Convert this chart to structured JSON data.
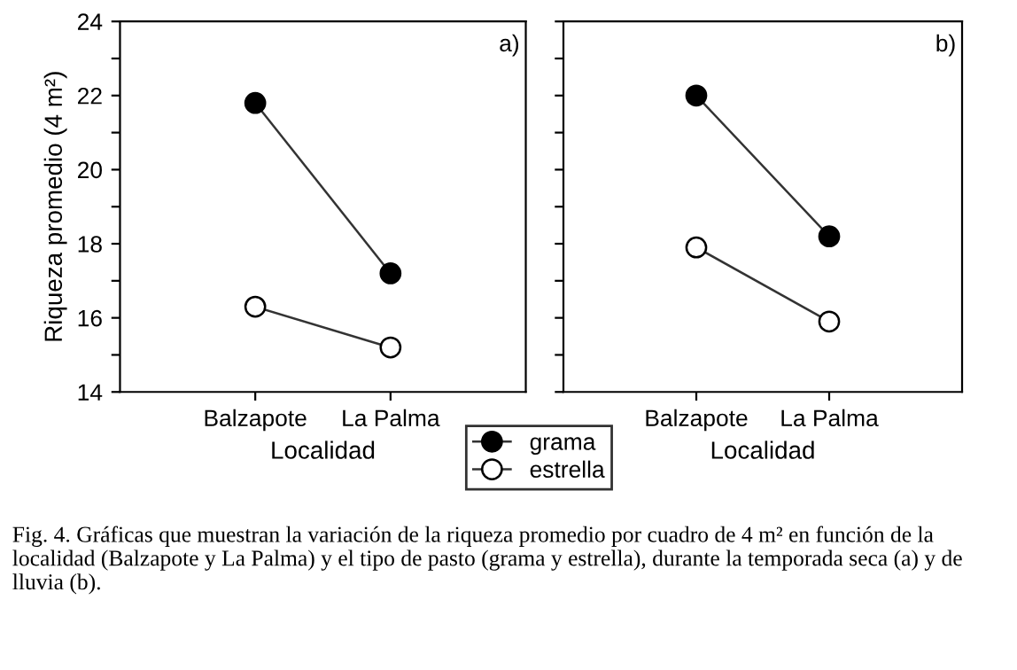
{
  "chart_data": [
    {
      "type": "line",
      "categories": [
        "Balzapote",
        "La Palma"
      ],
      "xlabel": "Localidad",
      "ylabel": "Riqueza promedio (4 m²)",
      "series": [
        {
          "name": "grama",
          "color": "#000000",
          "values": [
            21.8,
            17.2
          ]
        },
        {
          "name": "estrella",
          "color": "#ffffff",
          "values": [
            16.3,
            15.2
          ]
        }
      ],
      "ylim": [
        14,
        24
      ],
      "yticks": [
        14,
        {
          "value": 15,
          "label": null
        },
        16,
        {
          "value": 17,
          "label": null
        },
        18,
        {
          "value": 19,
          "label": null
        },
        20,
        {
          "value": 21,
          "label": null
        },
        22,
        {
          "value": 23,
          "label": null
        },
        24
      ],
      "marker": "circle",
      "grid": false,
      "legend": "bottom",
      "annotations": [
        "a)",
        "Fig. 4. Gráficas que muestran la variación de la riqueza promedio por cuadro de 4 m² en función de la localidad (Balzapote y La Palma) y el tipo de pasto (grama y estrella), durante la temporada seca (a) y de lluvia (b)."
      ]
    },
    {
      "type": "line",
      "categories": [
        "Balzapote",
        "La Palma"
      ],
      "xlabel": "Localidad",
      "series": [
        {
          "name": "grama",
          "color": "#000000",
          "values": [
            22.0,
            18.2
          ]
        },
        {
          "name": "estrella",
          "color": "#ffffff",
          "values": [
            17.9,
            15.9
          ]
        }
      ],
      "ylim": [
        14,
        24
      ],
      "yticks": [
        14,
        {
          "value": 15,
          "label": null
        },
        16,
        {
          "value": 17,
          "label": null
        },
        18,
        {
          "value": 19,
          "label": null
        },
        20,
        {
          "value": 21,
          "label": null
        },
        22,
        {
          "value": 23,
          "label": null
        },
        24
      ],
      "marker": "circle",
      "grid": false,
      "tick_labels": "x",
      "annotations": [
        "b)"
      ]
    }
  ]
}
